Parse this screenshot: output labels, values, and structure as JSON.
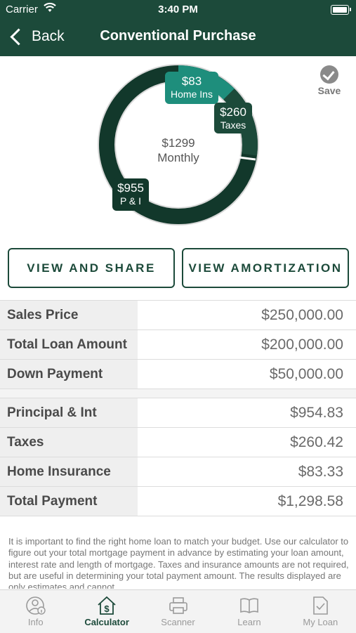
{
  "status_bar": {
    "carrier": "Carrier",
    "time": "3:40 PM"
  },
  "nav": {
    "back_label": "Back",
    "title": "Conventional Purchase"
  },
  "chart": {
    "center_amount": "$1299",
    "center_label": "Monthly",
    "segments": [
      {
        "value": "$83",
        "label": "Home Ins"
      },
      {
        "value": "$260",
        "label": "Taxes"
      },
      {
        "value": "$955",
        "label": "P & I"
      }
    ],
    "colors": {
      "pi": "#12382b",
      "taxes": "#1c4a3a",
      "home_ins": "#1e8e7c"
    }
  },
  "save_label": "Save",
  "buttons": {
    "view_share": "VIEW AND SHARE",
    "view_amort": "VIEW AMORTIZATION"
  },
  "loan_table": [
    {
      "label": "Sales Price",
      "value": "$250,000.00"
    },
    {
      "label": "Total Loan Amount",
      "value": "$200,000.00"
    },
    {
      "label": "Down Payment",
      "value": "$50,000.00"
    }
  ],
  "payment_table": [
    {
      "label": "Principal & Int",
      "value": "$954.83"
    },
    {
      "label": "Taxes",
      "value": "$260.42"
    },
    {
      "label": "Home Insurance",
      "value": "$83.33"
    },
    {
      "label": "Total Payment",
      "value": "$1,298.58"
    }
  ],
  "disclaimer": "It is important to find the right home loan to match your budget. Use our calculator to figure out your total mortgage payment in advance by estimating your loan amount, interest rate and length of mortgage. Taxes and insurance amounts are not required, but are useful in determining your total payment amount.  The results displayed are only estimates and cannot",
  "tabs": [
    {
      "label": "Info",
      "icon": "info-person-icon"
    },
    {
      "label": "Calculator",
      "icon": "calculator-house-icon",
      "active": true
    },
    {
      "label": "Scanner",
      "icon": "scanner-printer-icon"
    },
    {
      "label": "Learn",
      "icon": "book-icon"
    },
    {
      "label": "My Loan",
      "icon": "document-check-icon"
    }
  ],
  "accent_color": "#1c4a3a"
}
